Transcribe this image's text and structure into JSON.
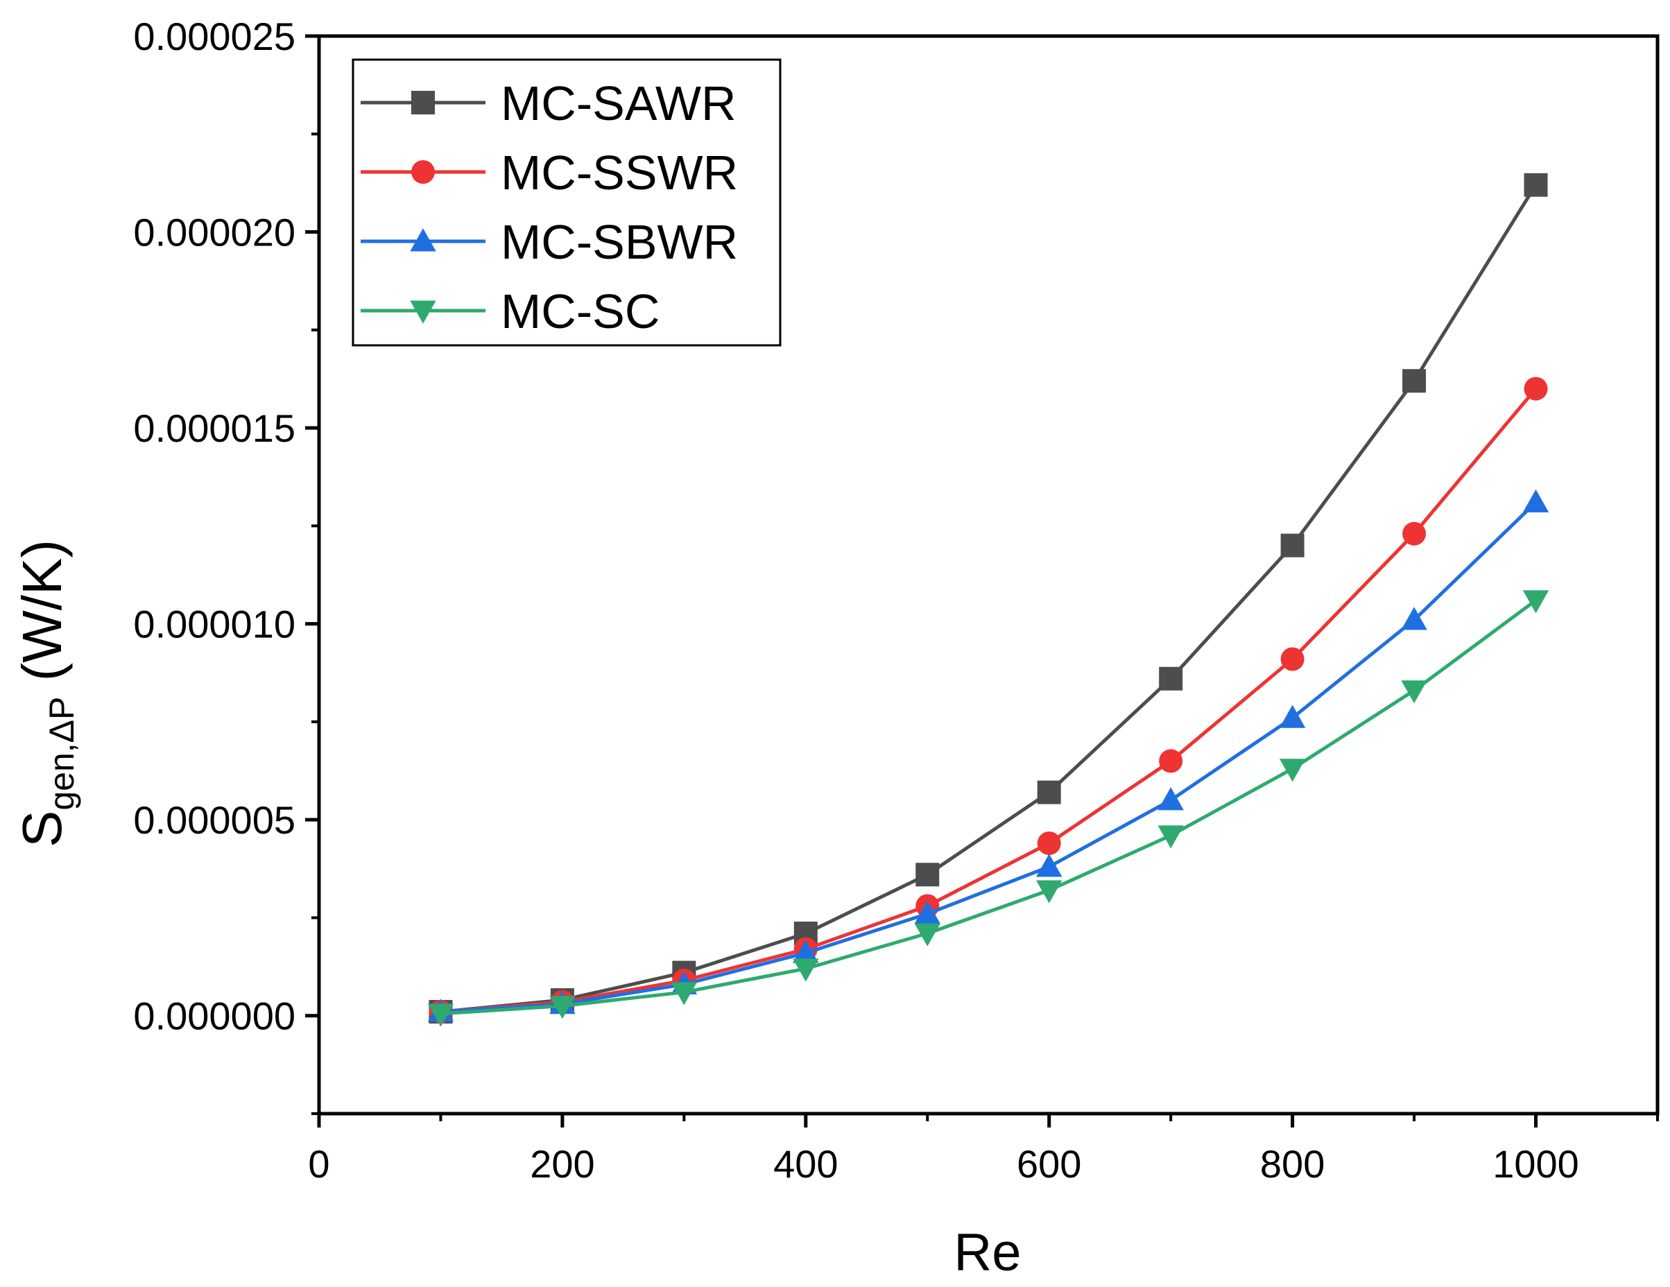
{
  "chart_data": {
    "type": "line",
    "title": "",
    "xlabel": "Re",
    "ylabel": {
      "main": "S",
      "subscript": "gen,ΔP",
      "unit": " (W/K)"
    },
    "xlim": [
      0,
      1100
    ],
    "ylim": [
      -2.5e-06,
      2.5e-05
    ],
    "xticks": [
      0,
      200,
      400,
      600,
      800,
      1000
    ],
    "xtick_labels": [
      "0",
      "200",
      "400",
      "600",
      "800",
      "1000"
    ],
    "yticks": [
      0,
      5e-06,
      1e-05,
      1.5e-05,
      2e-05,
      2.5e-05
    ],
    "ytick_labels": [
      "0.000000",
      "0.000005",
      "0.000010",
      "0.000015",
      "0.000020",
      "0.000025"
    ],
    "grid": false,
    "legend": "top-left",
    "x": [
      100,
      200,
      300,
      400,
      500,
      600,
      700,
      800,
      900,
      1000
    ],
    "series": [
      {
        "name": "MC-SAWR",
        "marker": "square",
        "color": "#4d4d4d",
        "values": [
          1e-07,
          4e-07,
          1.1e-06,
          2.1e-06,
          3.6e-06,
          5.7e-06,
          8.6e-06,
          1.2e-05,
          1.62e-05,
          2.12e-05
        ]
      },
      {
        "name": "MC-SSWR",
        "marker": "circle",
        "color": "#ee3333",
        "values": [
          1e-07,
          3.5e-07,
          9e-07,
          1.7e-06,
          2.8e-06,
          4.4e-06,
          6.5e-06,
          9.1e-06,
          1.23e-05,
          1.6e-05
        ]
      },
      {
        "name": "MC-SBWR",
        "marker": "triangle-up",
        "color": "#1f6fe0",
        "values": [
          1e-07,
          3e-07,
          8e-07,
          1.6e-06,
          2.6e-06,
          3.8e-06,
          5.5e-06,
          7.6e-06,
          1.01e-05,
          1.31e-05
        ]
      },
      {
        "name": "MC-SC",
        "marker": "triangle-down",
        "color": "#2eaa6e",
        "values": [
          5e-08,
          2.5e-07,
          6e-07,
          1.2e-06,
          2.1e-06,
          3.2e-06,
          4.6e-06,
          6.3e-06,
          8.3e-06,
          1.06e-05
        ]
      }
    ]
  }
}
